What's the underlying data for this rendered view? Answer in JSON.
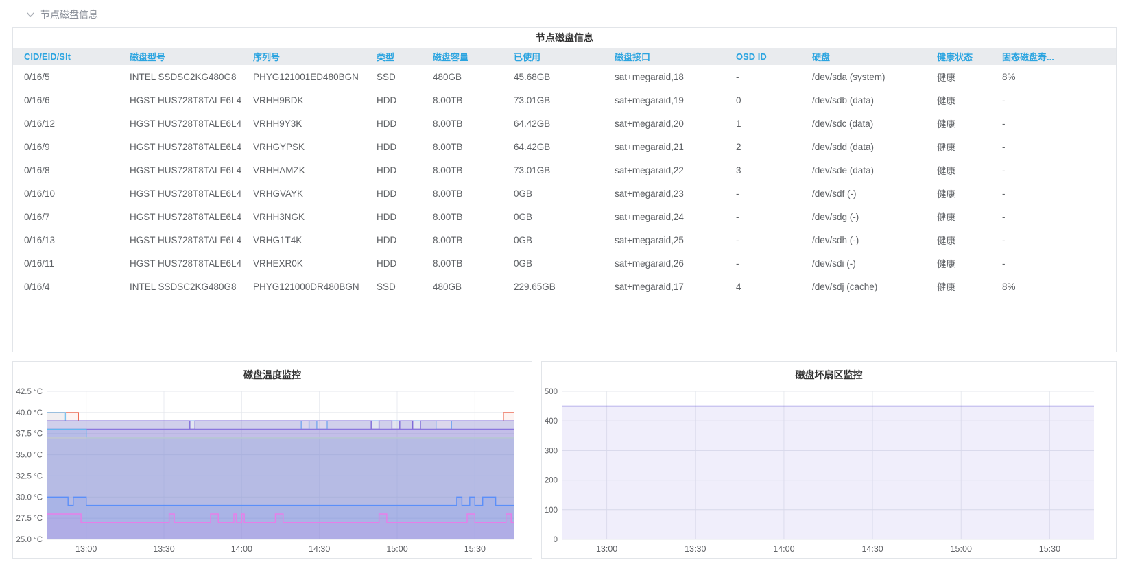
{
  "collapse_header": {
    "label": "节点磁盘信息"
  },
  "table": {
    "caption": "节点磁盘信息",
    "columns": [
      "CID/EID/Slt",
      "磁盘型号",
      "序列号",
      "类型",
      "磁盘容量",
      "已使用",
      "磁盘接口",
      "OSD ID",
      "硬盘",
      "健康状态",
      "固态磁盘寿..."
    ],
    "rows": [
      [
        "0/16/5",
        "INTEL SSDSC2KG480G8",
        "PHYG121001ED480BGN",
        "SSD",
        "480GB",
        "45.68GB",
        "sat+megaraid,18",
        "-",
        "/dev/sda (system)",
        "健康",
        "8%"
      ],
      [
        "0/16/6",
        "HGST HUS728T8TALE6L4",
        "VRHH9BDK",
        "HDD",
        "8.00TB",
        "73.01GB",
        "sat+megaraid,19",
        "0",
        "/dev/sdb (data)",
        "健康",
        "-"
      ],
      [
        "0/16/12",
        "HGST HUS728T8TALE6L4",
        "VRHH9Y3K",
        "HDD",
        "8.00TB",
        "64.42GB",
        "sat+megaraid,20",
        "1",
        "/dev/sdc (data)",
        "健康",
        "-"
      ],
      [
        "0/16/9",
        "HGST HUS728T8TALE6L4",
        "VRHGYPSK",
        "HDD",
        "8.00TB",
        "64.42GB",
        "sat+megaraid,21",
        "2",
        "/dev/sdd (data)",
        "健康",
        "-"
      ],
      [
        "0/16/8",
        "HGST HUS728T8TALE6L4",
        "VRHHAMZK",
        "HDD",
        "8.00TB",
        "73.01GB",
        "sat+megaraid,22",
        "3",
        "/dev/sde (data)",
        "健康",
        "-"
      ],
      [
        "0/16/10",
        "HGST HUS728T8TALE6L4",
        "VRHGVAYK",
        "HDD",
        "8.00TB",
        "0GB",
        "sat+megaraid,23",
        "-",
        "/dev/sdf (-)",
        "健康",
        "-"
      ],
      [
        "0/16/7",
        "HGST HUS728T8TALE6L4",
        "VRHH3NGK",
        "HDD",
        "8.00TB",
        "0GB",
        "sat+megaraid,24",
        "-",
        "/dev/sdg (-)",
        "健康",
        "-"
      ],
      [
        "0/16/13",
        "HGST HUS728T8TALE6L4",
        "VRHG1T4K",
        "HDD",
        "8.00TB",
        "0GB",
        "sat+megaraid,25",
        "-",
        "/dev/sdh (-)",
        "健康",
        "-"
      ],
      [
        "0/16/11",
        "HGST HUS728T8TALE6L4",
        "VRHEXR0K",
        "HDD",
        "8.00TB",
        "0GB",
        "sat+megaraid,26",
        "-",
        "/dev/sdi (-)",
        "健康",
        "-"
      ],
      [
        "0/16/4",
        "INTEL SSDSC2KG480G8",
        "PHYG121000DR480BGN",
        "SSD",
        "480GB",
        "229.65GB",
        "sat+megaraid,17",
        "4",
        "/dev/sdj (cache)",
        "健康",
        "8%"
      ]
    ]
  },
  "colors": {
    "header_text": "#2aa4e0",
    "header_bg": "#e9ebee",
    "body_text": "#5f6266",
    "card_border": "#e2e5e9",
    "grid_line": "#e4e7ec",
    "tick_text": "#606266",
    "title_text": "#333333",
    "collapse_text": "#8a8f99"
  },
  "chart_data": [
    {
      "type": "line",
      "title": "磁盘温度监控",
      "xlabel": "",
      "ylabel": "",
      "unit": "°C",
      "x_start": "12:45",
      "x_end": "15:45",
      "x_minutes_range": [
        0,
        180
      ],
      "x_ticks": [
        {
          "t": 15,
          "label": "13:00"
        },
        {
          "t": 45,
          "label": "13:30"
        },
        {
          "t": 75,
          "label": "14:00"
        },
        {
          "t": 105,
          "label": "14:30"
        },
        {
          "t": 135,
          "label": "15:00"
        },
        {
          "t": 165,
          "label": "15:30"
        }
      ],
      "ylim": [
        25,
        42.5
      ],
      "y_ticks": [
        {
          "v": 42.5,
          "label": "42.5 °C"
        },
        {
          "v": 40,
          "label": "40.0 °C"
        },
        {
          "v": 37.5,
          "label": "37.5 °C"
        },
        {
          "v": 35,
          "label": "35.0 °C"
        },
        {
          "v": 32.5,
          "label": "32.5 °C"
        },
        {
          "v": 30,
          "label": "30.0 °C"
        },
        {
          "v": 27.5,
          "label": "27.5 °C"
        },
        {
          "v": 25,
          "label": "25.0 °C"
        }
      ],
      "grid": true,
      "legend": "none",
      "series": [
        {
          "name": "temp-red",
          "color": "#ee6e57",
          "fill": "rgba(238,110,87,0.08)",
          "points": [
            [
              0,
              40
            ],
            [
              12,
              39
            ],
            [
              176,
              40
            ]
          ]
        },
        {
          "name": "temp-skyblue",
          "color": "#7cc3ef",
          "fill": "rgba(124,195,239,0.10)",
          "points": [
            [
              0,
              40
            ],
            [
              7,
              39
            ]
          ]
        },
        {
          "name": "temp-39-blue",
          "color": "#79a7f0",
          "fill": "rgba(121,167,240,0.12)",
          "points": [
            [
              0,
              39
            ],
            [
              98,
              38
            ],
            [
              101,
              39
            ],
            [
              104,
              38
            ],
            [
              108,
              39
            ],
            [
              150,
              38
            ],
            [
              156,
              39
            ]
          ]
        },
        {
          "name": "temp-39-purple",
          "color": "#7e6bd9",
          "fill": "rgba(126,107,217,0.18)",
          "points": [
            [
              0,
              39
            ],
            [
              55,
              38
            ],
            [
              57,
              39
            ],
            [
              125,
              38
            ],
            [
              128,
              39
            ],
            [
              133,
              38
            ],
            [
              136,
              39
            ],
            [
              141,
              38
            ],
            [
              144,
              39
            ]
          ]
        },
        {
          "name": "temp-38-purple",
          "color": "#8a77dd",
          "fill": "rgba(138,119,221,0.18)",
          "points": [
            [
              0,
              38
            ]
          ]
        },
        {
          "name": "temp-37-blue",
          "color": "#66b5ee",
          "fill": "rgba(102,181,238,0.12)",
          "points": [
            [
              0,
              38
            ],
            [
              15,
              37
            ]
          ]
        },
        {
          "name": "temp-37-gray",
          "color": "#c3c9ce",
          "fill": "rgba(180,186,192,0.10)",
          "points": [
            [
              0,
              37
            ]
          ]
        },
        {
          "name": "temp-29-blue",
          "color": "#5b8ff9",
          "fill": "rgba(91,143,249,0.14)",
          "points": [
            [
              0,
              30
            ],
            [
              8,
              29
            ],
            [
              10,
              30
            ],
            [
              15,
              29
            ],
            [
              158,
              30
            ],
            [
              160,
              29
            ],
            [
              163,
              30
            ],
            [
              165,
              29
            ],
            [
              168,
              30
            ],
            [
              173,
              29
            ]
          ]
        },
        {
          "name": "temp-27-magenta",
          "color": "#e77ee8",
          "fill": "rgba(231,126,232,0.12)",
          "points": [
            [
              0,
              28
            ],
            [
              13,
              27
            ],
            [
              47,
              28
            ],
            [
              49,
              27
            ],
            [
              63,
              28
            ],
            [
              66,
              27
            ],
            [
              72,
              28
            ],
            [
              73,
              27
            ],
            [
              75,
              28
            ],
            [
              76,
              27
            ],
            [
              88,
              28
            ],
            [
              91,
              27
            ],
            [
              128,
              28
            ],
            [
              131,
              27
            ],
            [
              162,
              28
            ],
            [
              165,
              27
            ],
            [
              177,
              28
            ],
            [
              179,
              27
            ]
          ]
        }
      ]
    },
    {
      "type": "line",
      "title": "磁盘坏扇区监控",
      "xlabel": "",
      "ylabel": "",
      "unit": "",
      "x_start": "12:45",
      "x_end": "15:45",
      "x_minutes_range": [
        0,
        180
      ],
      "x_ticks": [
        {
          "t": 15,
          "label": "13:00"
        },
        {
          "t": 45,
          "label": "13:30"
        },
        {
          "t": 75,
          "label": "14:00"
        },
        {
          "t": 105,
          "label": "14:30"
        },
        {
          "t": 135,
          "label": "15:00"
        },
        {
          "t": 165,
          "label": "15:30"
        }
      ],
      "ylim": [
        0,
        500
      ],
      "y_ticks": [
        {
          "v": 500,
          "label": "500"
        },
        {
          "v": 400,
          "label": "400"
        },
        {
          "v": 300,
          "label": "300"
        },
        {
          "v": 200,
          "label": "200"
        },
        {
          "v": 100,
          "label": "100"
        },
        {
          "v": 0,
          "label": "0"
        }
      ],
      "grid": true,
      "legend": "none",
      "series": [
        {
          "name": "bad-sectors",
          "color": "#5a4bd1",
          "fill": "rgba(104,88,214,0.10)",
          "points": [
            [
              0,
              450
            ]
          ]
        }
      ]
    }
  ]
}
